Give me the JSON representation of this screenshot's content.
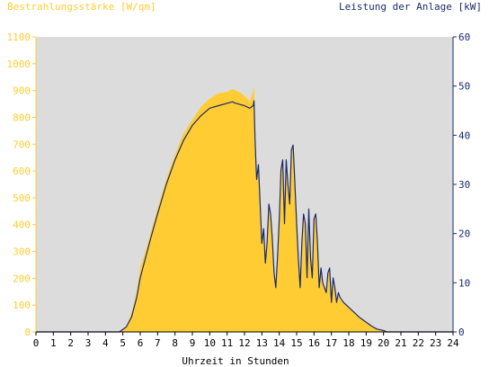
{
  "chart_data": {
    "type": "area",
    "title_left": "Bestrahlungsstärke [W/qm]",
    "title_right": "Leistung der Anlage [kW]",
    "xlabel": "Uhrzeit in Stunden",
    "x_ticks": [
      0,
      1,
      2,
      3,
      4,
      5,
      6,
      7,
      8,
      9,
      10,
      11,
      12,
      13,
      14,
      15,
      16,
      17,
      18,
      19,
      20,
      21,
      22,
      23,
      24
    ],
    "x_range": [
      0,
      24
    ],
    "y_left": {
      "range": [
        0,
        1100
      ],
      "ticks": [
        0,
        100,
        200,
        300,
        400,
        500,
        600,
        700,
        800,
        900,
        1000,
        1100
      ]
    },
    "y_right": {
      "range": [
        0,
        60
      ],
      "ticks": [
        0,
        10,
        20,
        30,
        40,
        50,
        60
      ]
    },
    "grid": false,
    "colors": {
      "plot_background": "#dcdcdc",
      "irradiance_fill": "#ffcc33",
      "power_line": "#1a2a6e",
      "left_axis_text": "#ffcc33",
      "right_axis_text": "#1a2a6e",
      "xlabel_text": "#000000"
    },
    "series": [
      {
        "axis": "left",
        "style": "area",
        "x": [
          0,
          4.8,
          5.2,
          5.5,
          5.8,
          6.0,
          6.3,
          6.6,
          7.0,
          7.5,
          8.0,
          8.5,
          9.0,
          9.5,
          10.0,
          10.5,
          11.0,
          11.3,
          11.5,
          11.8,
          12.0,
          12.3,
          12.5,
          12.55,
          12.6,
          12.65,
          12.7,
          12.8,
          12.9,
          13.0,
          13.1,
          13.2,
          13.3,
          13.4,
          13.5,
          13.6,
          13.7,
          13.8,
          13.9,
          14.0,
          14.1,
          14.2,
          14.3,
          14.4,
          14.5,
          14.6,
          14.7,
          14.8,
          14.9,
          15.0,
          15.1,
          15.2,
          15.3,
          15.4,
          15.5,
          15.6,
          15.7,
          15.8,
          15.9,
          16.0,
          16.1,
          16.2,
          16.3,
          16.4,
          16.5,
          16.6,
          16.7,
          16.8,
          16.9,
          17.0,
          17.1,
          17.2,
          17.3,
          17.4,
          17.5,
          17.7,
          18.0,
          18.3,
          18.6,
          19.0,
          19.3,
          19.6,
          20.0,
          20.2,
          24
        ],
        "y": [
          0,
          0,
          20,
          70,
          150,
          240,
          300,
          370,
          460,
          570,
          660,
          740,
          790,
          840,
          870,
          890,
          895,
          905,
          900,
          890,
          880,
          860,
          900,
          915,
          700,
          620,
          560,
          600,
          480,
          330,
          380,
          260,
          330,
          480,
          450,
          360,
          230,
          170,
          280,
          430,
          620,
          650,
          420,
          640,
          560,
          480,
          690,
          700,
          560,
          420,
          290,
          180,
          330,
          440,
          400,
          200,
          470,
          280,
          200,
          420,
          430,
          330,
          170,
          240,
          180,
          160,
          140,
          210,
          230,
          120,
          200,
          160,
          110,
          140,
          120,
          110,
          95,
          75,
          55,
          35,
          22,
          12,
          5,
          0,
          0
        ]
      },
      {
        "axis": "right",
        "style": "line",
        "x": [
          0,
          4.8,
          5.2,
          5.5,
          5.8,
          6.0,
          6.3,
          6.6,
          7.0,
          7.5,
          8.0,
          8.5,
          9.0,
          9.5,
          10.0,
          10.5,
          11.0,
          11.3,
          11.5,
          11.8,
          12.0,
          12.3,
          12.5,
          12.55,
          12.6,
          12.65,
          12.7,
          12.8,
          12.9,
          13.0,
          13.1,
          13.2,
          13.3,
          13.4,
          13.5,
          13.6,
          13.7,
          13.8,
          13.9,
          14.0,
          14.1,
          14.2,
          14.3,
          14.4,
          14.5,
          14.6,
          14.7,
          14.8,
          14.9,
          15.0,
          15.1,
          15.2,
          15.3,
          15.4,
          15.5,
          15.6,
          15.7,
          15.8,
          15.9,
          16.0,
          16.1,
          16.2,
          16.3,
          16.4,
          16.5,
          16.6,
          16.7,
          16.8,
          16.9,
          17.0,
          17.1,
          17.2,
          17.3,
          17.4,
          17.5,
          17.7,
          18.0,
          18.3,
          18.6,
          19.0,
          19.3,
          19.6,
          20.0,
          20.2,
          24
        ],
        "y": [
          0,
          0,
          1,
          3,
          7,
          11,
          15,
          19,
          24,
          30,
          35,
          39,
          42,
          44,
          45.5,
          46,
          46.5,
          46.8,
          46.5,
          46.2,
          46,
          45.5,
          46,
          47,
          40,
          35,
          31,
          34,
          26,
          18,
          21,
          14,
          18,
          26,
          24,
          19,
          12,
          9,
          15,
          23,
          33,
          35,
          22,
          35,
          30,
          26,
          37,
          38,
          30,
          22,
          15,
          9,
          18,
          24,
          22,
          11,
          25,
          15,
          11,
          23,
          24,
          18,
          9,
          13,
          10,
          9,
          8,
          12,
          13,
          6,
          11,
          9,
          6,
          8,
          7,
          6,
          5,
          4,
          3,
          2,
          1.2,
          0.6,
          0.3,
          0,
          0
        ]
      }
    ]
  }
}
